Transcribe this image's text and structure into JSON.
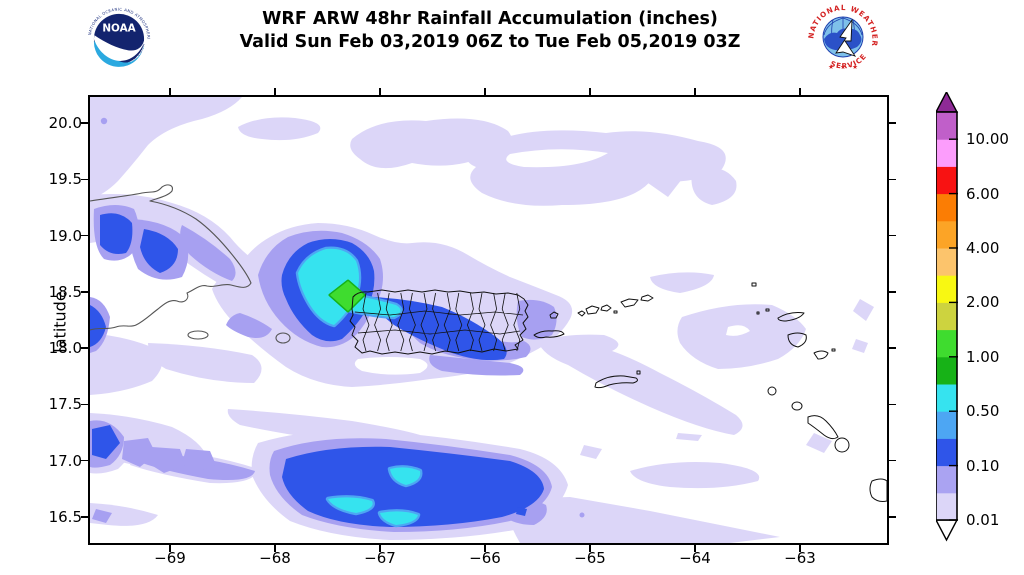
{
  "header": {
    "title_line1": "WRF ARW 48hr Rainfall Accumulation (inches)",
    "title_line2": "Valid Sun Feb 03,2019 06Z to Tue Feb 05,2019 03Z",
    "noaa_logo": {
      "abbr": "NOAA",
      "ring_top": "NATIONAL OCEANIC AND ATMOSPHERIC ADMINISTRATION",
      "ring_bottom": "U.S. DEPARTMENT OF COMMERCE"
    },
    "nws_logo": {
      "ring_top": "NATIONAL WEATHER",
      "ring_bottom": "SERVICE",
      "stars": "★ · ★ · ★"
    }
  },
  "chart_data": {
    "type": "contour",
    "title": "WRF ARW 48hr Rainfall Accumulation (inches)",
    "subtitle": "Valid Sun Feb 03,2019 06Z to Tue Feb 05,2019 03Z",
    "model": "WRF ARW",
    "accumulation_hours": 48,
    "units": "inches",
    "valid_from": "Sun Feb 03,2019 06Z",
    "valid_to": "Tue Feb 05,2019 03Z",
    "xlabel": "",
    "ylabel": "latitude",
    "xlim": [
      -69.75,
      -62.18
    ],
    "ylim": [
      16.27,
      20.23
    ],
    "xticks": [
      -69,
      -68,
      -67,
      -66,
      -65,
      -64,
      -63
    ],
    "xtick_labels": [
      "−69",
      "−68",
      "−67",
      "−66",
      "−65",
      "−64",
      "−63"
    ],
    "yticks": [
      20.0,
      19.5,
      19.0,
      18.5,
      18.0,
      17.5,
      17.0,
      16.5
    ],
    "ytick_labels": [
      "20.0",
      "19.5",
      "19.0",
      "18.5",
      "18.0",
      "17.5",
      "17.0",
      "16.5"
    ],
    "grid": false,
    "colorbar": {
      "units": "inches",
      "labeled_levels": [
        "0.01",
        "0.10",
        "0.50",
        "1.00",
        "2.00",
        "4.00",
        "6.00",
        "10.00"
      ],
      "segments_bottom_to_top": [
        {
          "min": 0.01,
          "color": "#dcd6f8",
          "label": "0.01"
        },
        {
          "min": 0.05,
          "color": "#aaa3f2"
        },
        {
          "min": 0.1,
          "color": "#2f55e9",
          "label": "0.10"
        },
        {
          "min": 0.25,
          "color": "#4da6f3"
        },
        {
          "min": 0.5,
          "color": "#36e3ef",
          "label": "0.50"
        },
        {
          "min": 0.75,
          "color": "#17b217"
        },
        {
          "min": 1.0,
          "color": "#3fdc2f",
          "label": "1.00"
        },
        {
          "min": 1.5,
          "color": "#cdd33f"
        },
        {
          "min": 2.0,
          "color": "#f8f812",
          "label": "2.00"
        },
        {
          "min": 3.0,
          "color": "#fcc46c"
        },
        {
          "min": 4.0,
          "color": "#fca426",
          "label": "4.00"
        },
        {
          "min": 5.0,
          "color": "#fb7d04"
        },
        {
          "min": 6.0,
          "color": "#f81212",
          "label": "6.00"
        },
        {
          "min": 8.0,
          "color": "#fc9dfc"
        },
        {
          "min": 10.0,
          "color": "#c05fc9",
          "label": "10.00"
        }
      ],
      "over_arrow_color": "#8e2a96",
      "under_arrow_color": "#ffffff"
    },
    "palette": {
      "lavender": "#dcd6f8",
      "periwinkle": "#a7a0f1",
      "royal_blue": "#2f55e9",
      "sky_blue": "#4da6f3",
      "cyan": "#36e3ef",
      "dark_green": "#17b217",
      "green": "#3fdc2f",
      "coast_gray": "#555555",
      "boundary_black": "#111111"
    },
    "rainfall_maxima": [
      {
        "area": "offshore northwest of Puerto Rico (near Aguadilla)",
        "lon": -67.4,
        "lat": 18.47,
        "peak_band_inches": "1.00–1.50"
      },
      {
        "area": "Caribbean south of Puerto Rico",
        "lon": -66.8,
        "lat": 16.65,
        "peak_band_inches": "0.50–0.75"
      },
      {
        "area": "northern Dominican Republic coast",
        "lon": -69.5,
        "lat": 19.1,
        "peak_band_inches": "0.10–0.25"
      },
      {
        "area": "west-central and south-central Puerto Rico",
        "lon": -66.6,
        "lat": 18.2,
        "peak_band_inches": "0.25–0.50"
      }
    ],
    "geography_visible": [
      "Puerto Rico with municipal boundaries",
      "eastern Hispaniola (Dominican Republic)",
      "Mona Island",
      "Vieques and Culebra",
      "U.S. and British Virgin Islands",
      "St. Croix",
      "Anguilla / St. Martin / St. Barthelemy",
      "Saba / St. Eustatius",
      "St. Kitts and Nevis",
      "Montserrat (right edge)"
    ]
  }
}
